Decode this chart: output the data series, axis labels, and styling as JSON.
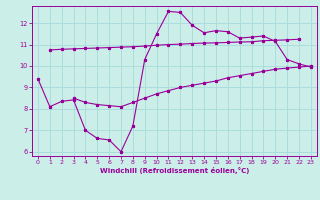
{
  "xlabel": "Windchill (Refroidissement éolien,°C)",
  "bg_color": "#cceee8",
  "grid_color": "#aadddd",
  "line_color": "#990099",
  "xlim": [
    -0.5,
    23.5
  ],
  "ylim": [
    5.8,
    12.8
  ],
  "xticks": [
    0,
    1,
    2,
    3,
    4,
    5,
    6,
    7,
    8,
    9,
    10,
    11,
    12,
    13,
    14,
    15,
    16,
    17,
    18,
    19,
    20,
    21,
    22,
    23
  ],
  "yticks": [
    6,
    7,
    8,
    9,
    10,
    11,
    12
  ],
  "line1_x": [
    1,
    2,
    3,
    4,
    5,
    6,
    7,
    8,
    9,
    10,
    11,
    12,
    13,
    14,
    15,
    16,
    17,
    18,
    19,
    20,
    21,
    22
  ],
  "line1_y": [
    10.75,
    10.78,
    10.8,
    10.82,
    10.84,
    10.86,
    10.88,
    10.9,
    10.93,
    10.97,
    11.0,
    11.02,
    11.05,
    11.07,
    11.08,
    11.1,
    11.12,
    11.13,
    11.18,
    11.2,
    11.22,
    11.25
  ],
  "line2_x": [
    0,
    1,
    2,
    3,
    4,
    5,
    6,
    7,
    8,
    9,
    10,
    11,
    12,
    13,
    14,
    15,
    16,
    17,
    18,
    19,
    20,
    21,
    22,
    23
  ],
  "line2_y": [
    9.4,
    8.1,
    8.35,
    8.42,
    7.0,
    6.62,
    6.55,
    6.0,
    7.2,
    10.3,
    11.5,
    12.55,
    12.5,
    11.9,
    11.55,
    11.65,
    11.6,
    11.3,
    11.35,
    11.4,
    11.15,
    10.3,
    10.1,
    9.95
  ],
  "line3_x": [
    3,
    4,
    5,
    6,
    7,
    8,
    9,
    10,
    11,
    12,
    13,
    14,
    15,
    16,
    17,
    18,
    19,
    20,
    21,
    22,
    23
  ],
  "line3_y": [
    8.5,
    8.3,
    8.2,
    8.15,
    8.1,
    8.3,
    8.5,
    8.7,
    8.85,
    9.0,
    9.1,
    9.2,
    9.3,
    9.45,
    9.55,
    9.65,
    9.75,
    9.85,
    9.9,
    9.95,
    10.0
  ]
}
